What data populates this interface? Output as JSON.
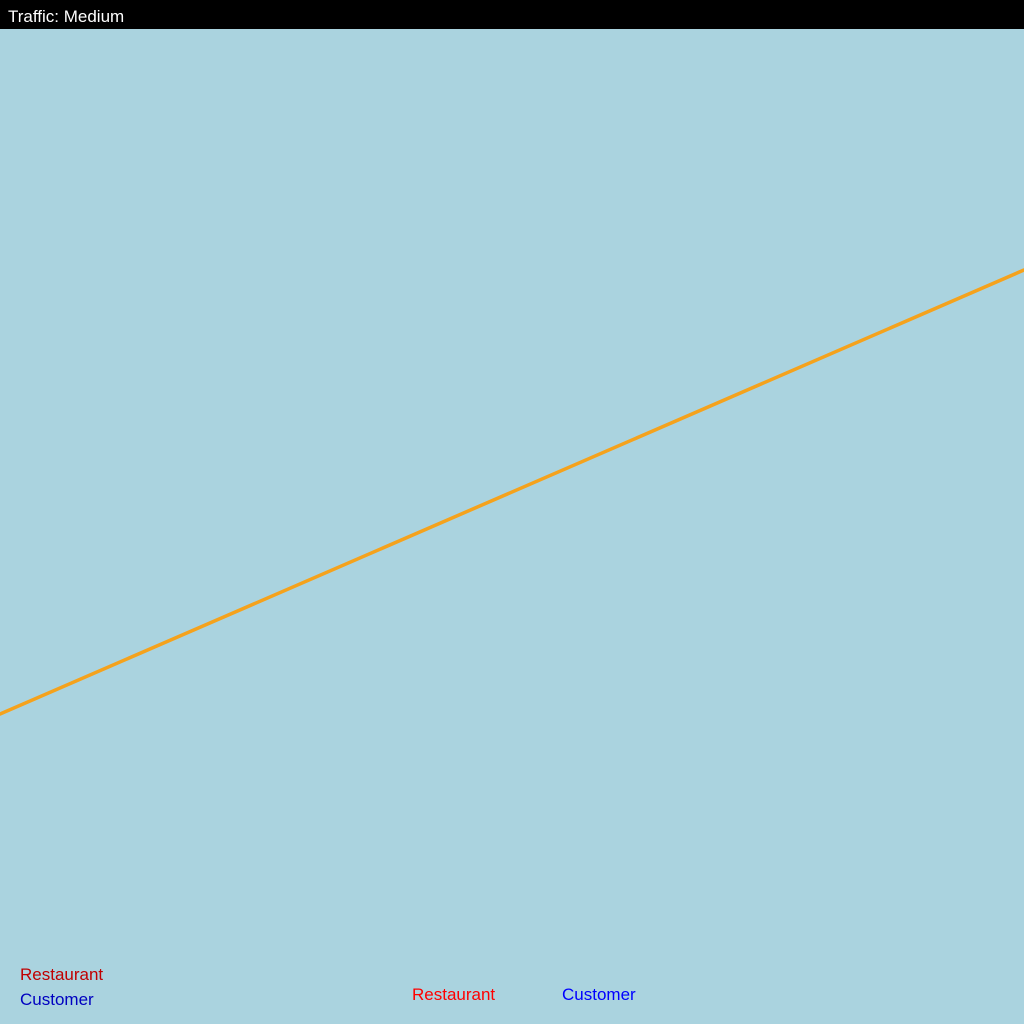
{
  "status": {
    "traffic_text": "Traffic: Medium"
  },
  "colors": {
    "background": "#aad3df",
    "status_bar_bg": "#000000",
    "status_bar_text": "#ffffff",
    "route": "#f5a21c",
    "legend_restaurant": "#c00000",
    "legend_customer": "#0000c0",
    "marker_restaurant": "#ff0000",
    "marker_customer": "#0000ff"
  },
  "legend": {
    "restaurant_label": "Restaurant",
    "customer_label": "Customer"
  },
  "markers": {
    "restaurant_label": "Restaurant",
    "customer_label": "Customer"
  }
}
